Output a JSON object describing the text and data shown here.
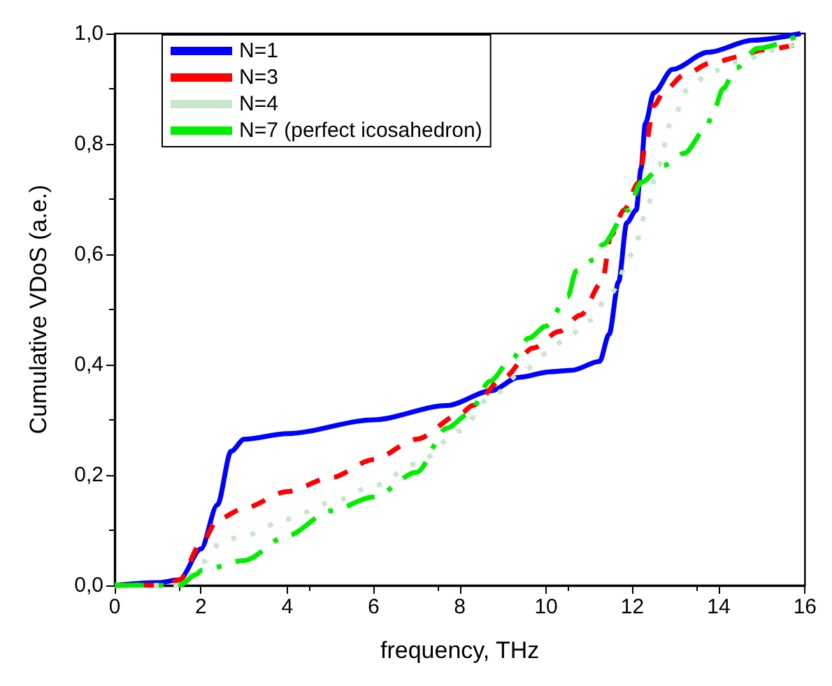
{
  "chart_data": {
    "type": "line",
    "xlabel": "frequency, THz",
    "ylabel": "Cumulative VDoS (a.e.)",
    "xlim": [
      0,
      16
    ],
    "ylim": [
      0,
      1
    ],
    "xticks": [
      0,
      2,
      4,
      6,
      8,
      10,
      12,
      14,
      16
    ],
    "yticks": [
      {
        "value": 0,
        "label": "0,0"
      },
      {
        "value": 0.2,
        "label": "0,2"
      },
      {
        "value": 0.4,
        "label": "0,4"
      },
      {
        "value": 0.6,
        "label": "0,6"
      },
      {
        "value": 0.8,
        "label": "0,8"
      },
      {
        "value": 1,
        "label": "1,0"
      }
    ],
    "grid": false,
    "legend": "top left",
    "marker": "none",
    "series": [
      {
        "name": "N=1",
        "color": "#0000ff",
        "line_style": "solid",
        "x": [
          0,
          1,
          1.5,
          2,
          2.38,
          2.7,
          3,
          4,
          6,
          7.7,
          8.74,
          9.36,
          10.1,
          10.6,
          11.24,
          11.46,
          11.68,
          11.87,
          12.09,
          12.2,
          12.3,
          12.5,
          12.93,
          13.75,
          14.8,
          15.9
        ],
        "values": [
          0,
          0.005,
          0.01,
          0.066,
          0.146,
          0.243,
          0.265,
          0.275,
          0.3,
          0.326,
          0.353,
          0.377,
          0.387,
          0.39,
          0.406,
          0.455,
          0.55,
          0.657,
          0.68,
          0.755,
          0.837,
          0.893,
          0.935,
          0.966,
          0.988,
          1.0
        ]
      },
      {
        "name": "N=3",
        "color": "#ff0000",
        "line_style": "dashed",
        "x": [
          0,
          1.2,
          1.5,
          2,
          2.4,
          3,
          4,
          5,
          6,
          7,
          8,
          8.3,
          9,
          9.7,
          10.3,
          10.8,
          11.3,
          11.5,
          11.8,
          12.15,
          12.3,
          12.5,
          12.75,
          13.2,
          13.8,
          14.5,
          15,
          15.8
        ],
        "values": [
          0,
          0,
          0.01,
          0.075,
          0.12,
          0.14,
          0.17,
          0.195,
          0.228,
          0.265,
          0.31,
          0.326,
          0.375,
          0.43,
          0.46,
          0.49,
          0.55,
          0.633,
          0.68,
          0.73,
          0.795,
          0.87,
          0.897,
          0.925,
          0.946,
          0.958,
          0.97,
          0.98
        ]
      },
      {
        "name": "N=4",
        "color": "#c8e6c8",
        "line_style": "dotted",
        "x": [
          0,
          1.5,
          2,
          2.5,
          3,
          4,
          5,
          6,
          7,
          8,
          8.7,
          9.5,
          10,
          10.5,
          11,
          11.5,
          12,
          12.3,
          12.6,
          12.9,
          13.3,
          13.8,
          14.5,
          15.3,
          16
        ],
        "values": [
          0,
          0,
          0.04,
          0.08,
          0.09,
          0.12,
          0.15,
          0.18,
          0.22,
          0.28,
          0.34,
          0.39,
          0.42,
          0.45,
          0.48,
          0.53,
          0.6,
          0.67,
          0.76,
          0.84,
          0.9,
          0.93,
          0.95,
          0.97,
          0.99
        ]
      },
      {
        "name": "N=7 (perfect icosahedron)",
        "color": "#00ee00",
        "line_style": "dashdot",
        "x": [
          0,
          1.5,
          1.9,
          2,
          3,
          4,
          5,
          6,
          7,
          7.7,
          8.2,
          8.7,
          9.2,
          9.6,
          10,
          10.5,
          10.7,
          11.1,
          11.3,
          11.9,
          12.2,
          12.7,
          13.2,
          13.7,
          13.9,
          14.1,
          14.4,
          14.9,
          15.9
        ],
        "values": [
          0,
          0,
          0.02,
          0.027,
          0.045,
          0.09,
          0.135,
          0.16,
          0.205,
          0.285,
          0.31,
          0.37,
          0.41,
          0.448,
          0.47,
          0.523,
          0.57,
          0.59,
          0.617,
          0.68,
          0.73,
          0.76,
          0.783,
          0.827,
          0.864,
          0.9,
          0.937,
          0.973,
          0.998
        ]
      }
    ]
  }
}
